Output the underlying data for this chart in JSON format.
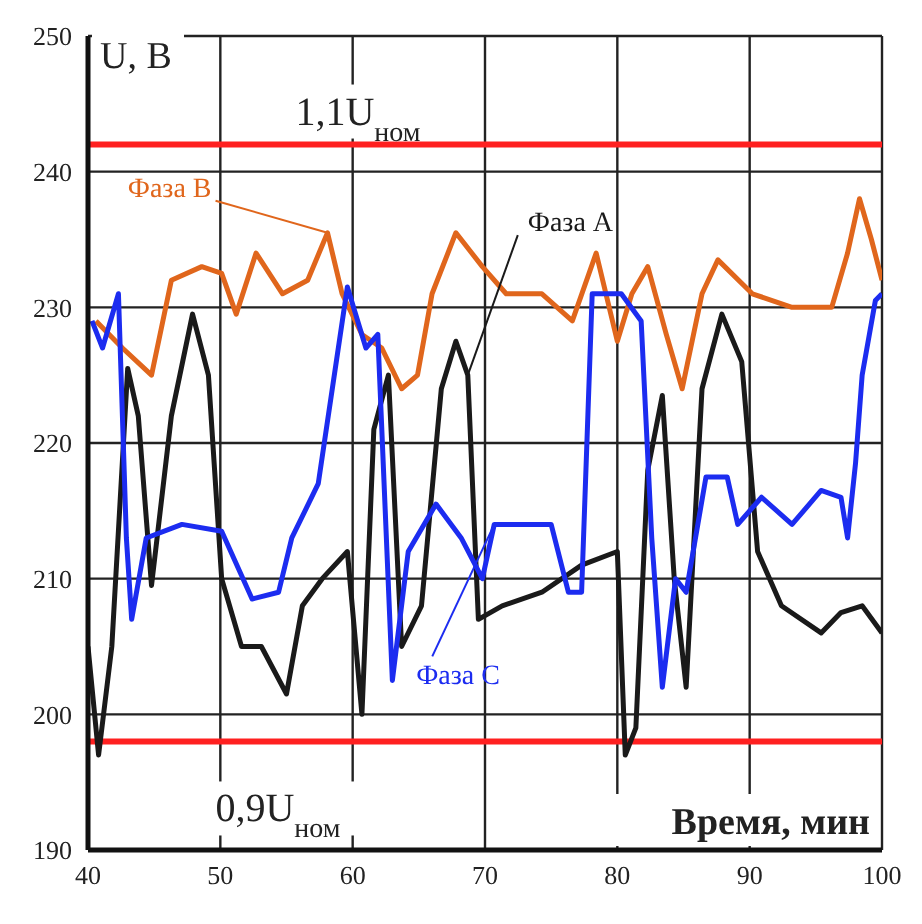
{
  "chart_data": {
    "type": "line",
    "ylabel": "U, В",
    "xlabel": "Время, мин",
    "xlim": [
      40,
      100
    ],
    "xticks": [
      40,
      50,
      60,
      70,
      80,
      90,
      100
    ],
    "ylim": [
      190,
      250
    ],
    "yticks": [
      190,
      200,
      210,
      220,
      230,
      240,
      250
    ],
    "grid": true,
    "marker": "none",
    "line_style": "solid",
    "ref_lines": [
      {
        "axis": "y",
        "value": 242,
        "label": "1,1U$_{ном}$",
        "color": "#ff2020"
      },
      {
        "axis": "y",
        "value": 198,
        "label": "0,9U$_{ном}$",
        "color": "#ff2020"
      }
    ],
    "series": [
      {
        "name": "Фаза В",
        "color": "#e0661c",
        "x": [
          40.6,
          42.6,
          44.8,
          46.3,
          48.6,
          50.1,
          51.2,
          52.7,
          54.7,
          56.6,
          58.1,
          59.2,
          60.7,
          62.2,
          63.7,
          64.9,
          66,
          67.8,
          69.8,
          71.6,
          74.3,
          76.6,
          78.4,
          80,
          81.1,
          82.3,
          83.7,
          84.9,
          86.4,
          87.6,
          90.2,
          93.2,
          96.2,
          97.4,
          98.3,
          99.2,
          100
        ],
        "values": [
          229,
          227,
          225,
          232,
          233,
          232.5,
          229.5,
          234,
          231,
          232,
          235.5,
          231,
          228,
          227,
          224,
          225,
          231,
          235.5,
          233,
          231,
          231,
          229,
          234,
          227.5,
          231,
          233,
          228,
          224,
          231,
          233.5,
          231,
          230,
          230,
          234,
          238,
          235,
          232
        ]
      },
      {
        "name": "Фаза А",
        "color": "#1a1a1a",
        "x": [
          40,
          40.8,
          41.8,
          43,
          43.8,
          44.8,
          46.3,
          47.9,
          49.1,
          50.1,
          51.6,
          53.1,
          55,
          56.2,
          57.7,
          59.6,
          60.7,
          61.6,
          62.7,
          63.7,
          65.2,
          66.7,
          67.8,
          68.7,
          69.5,
          71.3,
          74.3,
          77.3,
          80,
          80.6,
          81.4,
          82.3,
          83.4,
          84.3,
          85.2,
          86.4,
          87.9,
          89.4,
          90.6,
          92.4,
          95.4,
          96.9,
          98.5,
          100
        ],
        "values": [
          205,
          197,
          205,
          225.5,
          222,
          209.5,
          222,
          229.5,
          225,
          210,
          205,
          205,
          201.5,
          208,
          210,
          212,
          200,
          221,
          225,
          205,
          208,
          224,
          227.5,
          225,
          207,
          208,
          209,
          211,
          212,
          197,
          199,
          218,
          223.5,
          210,
          202,
          224,
          229.5,
          226,
          212,
          208,
          206,
          207.5,
          208,
          206
        ]
      },
      {
        "name": "Фаза С",
        "color": "#1c2cf0",
        "x": [
          40.3,
          41.1,
          42.3,
          42.9,
          43.3,
          44.4,
          47.1,
          50.1,
          52.4,
          54.4,
          55.4,
          57.4,
          59.6,
          61,
          61.9,
          63,
          64.2,
          66.3,
          68.2,
          69.8,
          70.7,
          75,
          76.3,
          77.3,
          78.1,
          80.3,
          81.8,
          82.6,
          83.4,
          84.4,
          85.2,
          86.7,
          88.3,
          89.1,
          90.9,
          93.2,
          95.4,
          96.9,
          97.4,
          98,
          98.5,
          99.5,
          100
        ],
        "values": [
          229,
          227,
          231,
          213,
          207,
          213,
          214,
          213.5,
          208.5,
          209,
          213,
          217,
          231.5,
          227,
          228,
          202.5,
          212,
          215.5,
          213,
          210,
          214,
          214,
          209,
          209,
          231,
          231,
          229,
          213,
          202,
          210,
          209,
          217.5,
          217.5,
          214,
          216,
          214,
          216.5,
          216,
          213,
          218.5,
          225,
          230.5,
          231
        ]
      }
    ]
  }
}
